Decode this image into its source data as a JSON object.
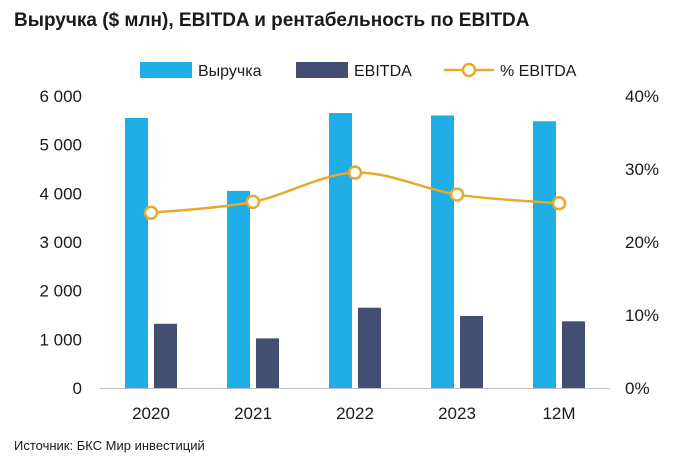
{
  "title": "Выручка ($ млн), EBITDA и рентабельность по EBITDA",
  "source": "Источник: БКС Мир инвестиций",
  "colors": {
    "revenue": "#20aee6",
    "ebitda": "#434f72",
    "margin": "#e8a92c",
    "axis": "#bfbfbf"
  },
  "chart_data": {
    "type": "bar",
    "categories": [
      "2020",
      "2021",
      "2022",
      "2023",
      "12M"
    ],
    "series": [
      {
        "name": "Выручка",
        "type": "bar",
        "axis": "left",
        "values": [
          5550,
          4050,
          5650,
          5600,
          5480
        ]
      },
      {
        "name": "EBITDA",
        "type": "bar",
        "axis": "left",
        "values": [
          1320,
          1020,
          1650,
          1480,
          1370
        ]
      },
      {
        "name": "% EBITDA",
        "type": "line",
        "axis": "right",
        "values": [
          24.0,
          25.5,
          29.5,
          26.5,
          25.3
        ]
      }
    ],
    "ylim": [
      0,
      6000
    ],
    "y2lim": [
      0,
      40
    ],
    "y_ticks": [
      "0",
      "1 000",
      "2 000",
      "3 000",
      "4 000",
      "5 000",
      "6 000"
    ],
    "y2_ticks": [
      "0%",
      "10%",
      "20%",
      "30%",
      "40%"
    ],
    "legend_position": "top",
    "grid": false
  }
}
